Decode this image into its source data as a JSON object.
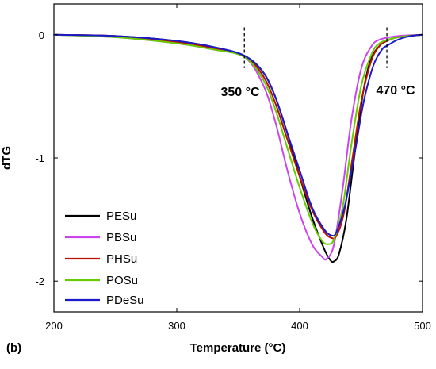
{
  "chart_data": {
    "type": "line",
    "panel_label": "(b)",
    "xlabel": "Temperature (°C)",
    "ylabel": "dTG",
    "xlim": [
      200,
      500
    ],
    "ylim": [
      -2.25,
      0.25
    ],
    "xticks": [
      200,
      300,
      400,
      500
    ],
    "yticks": [
      0,
      -1,
      -2
    ],
    "ytick_labels": [
      "0",
      "-1",
      "-2"
    ],
    "grid": false,
    "legend_position": "bottom-left",
    "annotations": [
      {
        "text": "350 °C",
        "x": 355
      },
      {
        "text": "470 °C",
        "x": 471
      }
    ],
    "series": [
      {
        "name": "PESu",
        "color": "#000000",
        "points": [
          [
            200,
            0
          ],
          [
            250,
            -0.01
          ],
          [
            300,
            -0.05
          ],
          [
            330,
            -0.1
          ],
          [
            355,
            -0.17
          ],
          [
            370,
            -0.3
          ],
          [
            380,
            -0.5
          ],
          [
            390,
            -0.8
          ],
          [
            400,
            -1.15
          ],
          [
            410,
            -1.48
          ],
          [
            420,
            -1.74
          ],
          [
            425,
            -1.83
          ],
          [
            428,
            -1.84
          ],
          [
            432,
            -1.78
          ],
          [
            438,
            -1.5
          ],
          [
            445,
            -0.95
          ],
          [
            452,
            -0.45
          ],
          [
            458,
            -0.2
          ],
          [
            465,
            -0.09
          ],
          [
            471,
            -0.05
          ],
          [
            480,
            -0.02
          ],
          [
            500,
            0
          ]
        ]
      },
      {
        "name": "PBSu",
        "color": "#cc44ee",
        "points": [
          [
            200,
            0
          ],
          [
            250,
            -0.02
          ],
          [
            300,
            -0.07
          ],
          [
            330,
            -0.12
          ],
          [
            355,
            -0.18
          ],
          [
            370,
            -0.4
          ],
          [
            380,
            -0.7
          ],
          [
            390,
            -1.1
          ],
          [
            400,
            -1.45
          ],
          [
            410,
            -1.7
          ],
          [
            418,
            -1.8
          ],
          [
            422,
            -1.82
          ],
          [
            428,
            -1.7
          ],
          [
            435,
            -1.25
          ],
          [
            442,
            -0.7
          ],
          [
            450,
            -0.28
          ],
          [
            458,
            -0.1
          ],
          [
            465,
            -0.04
          ],
          [
            480,
            -0.01
          ],
          [
            500,
            0
          ]
        ]
      },
      {
        "name": "PHSu",
        "color": "#bb1100",
        "points": [
          [
            200,
            0
          ],
          [
            250,
            -0.01
          ],
          [
            300,
            -0.06
          ],
          [
            330,
            -0.11
          ],
          [
            355,
            -0.17
          ],
          [
            370,
            -0.33
          ],
          [
            380,
            -0.55
          ],
          [
            390,
            -0.85
          ],
          [
            400,
            -1.15
          ],
          [
            410,
            -1.42
          ],
          [
            420,
            -1.6
          ],
          [
            426,
            -1.65
          ],
          [
            430,
            -1.63
          ],
          [
            436,
            -1.45
          ],
          [
            443,
            -1.0
          ],
          [
            450,
            -0.55
          ],
          [
            458,
            -0.22
          ],
          [
            465,
            -0.09
          ],
          [
            471,
            -0.05
          ],
          [
            480,
            -0.02
          ],
          [
            500,
            0
          ]
        ]
      },
      {
        "name": "POSu",
        "color": "#66cc00",
        "points": [
          [
            200,
            0
          ],
          [
            250,
            -0.02
          ],
          [
            300,
            -0.07
          ],
          [
            330,
            -0.12
          ],
          [
            355,
            -0.18
          ],
          [
            370,
            -0.36
          ],
          [
            380,
            -0.6
          ],
          [
            390,
            -0.92
          ],
          [
            400,
            -1.24
          ],
          [
            410,
            -1.52
          ],
          [
            418,
            -1.67
          ],
          [
            423,
            -1.7
          ],
          [
            428,
            -1.66
          ],
          [
            435,
            -1.4
          ],
          [
            442,
            -0.9
          ],
          [
            450,
            -0.42
          ],
          [
            458,
            -0.17
          ],
          [
            465,
            -0.07
          ],
          [
            480,
            -0.02
          ],
          [
            500,
            0
          ]
        ]
      },
      {
        "name": "PDeSu",
        "color": "#1a1acc",
        "points": [
          [
            200,
            0
          ],
          [
            250,
            -0.01
          ],
          [
            300,
            -0.05
          ],
          [
            330,
            -0.1
          ],
          [
            355,
            -0.17
          ],
          [
            370,
            -0.3
          ],
          [
            380,
            -0.5
          ],
          [
            390,
            -0.8
          ],
          [
            400,
            -1.1
          ],
          [
            410,
            -1.4
          ],
          [
            420,
            -1.58
          ],
          [
            426,
            -1.63
          ],
          [
            430,
            -1.6
          ],
          [
            437,
            -1.38
          ],
          [
            445,
            -0.95
          ],
          [
            452,
            -0.55
          ],
          [
            460,
            -0.25
          ],
          [
            467,
            -0.12
          ],
          [
            471,
            -0.09
          ],
          [
            480,
            -0.04
          ],
          [
            490,
            -0.01
          ],
          [
            500,
            0
          ]
        ]
      }
    ]
  }
}
